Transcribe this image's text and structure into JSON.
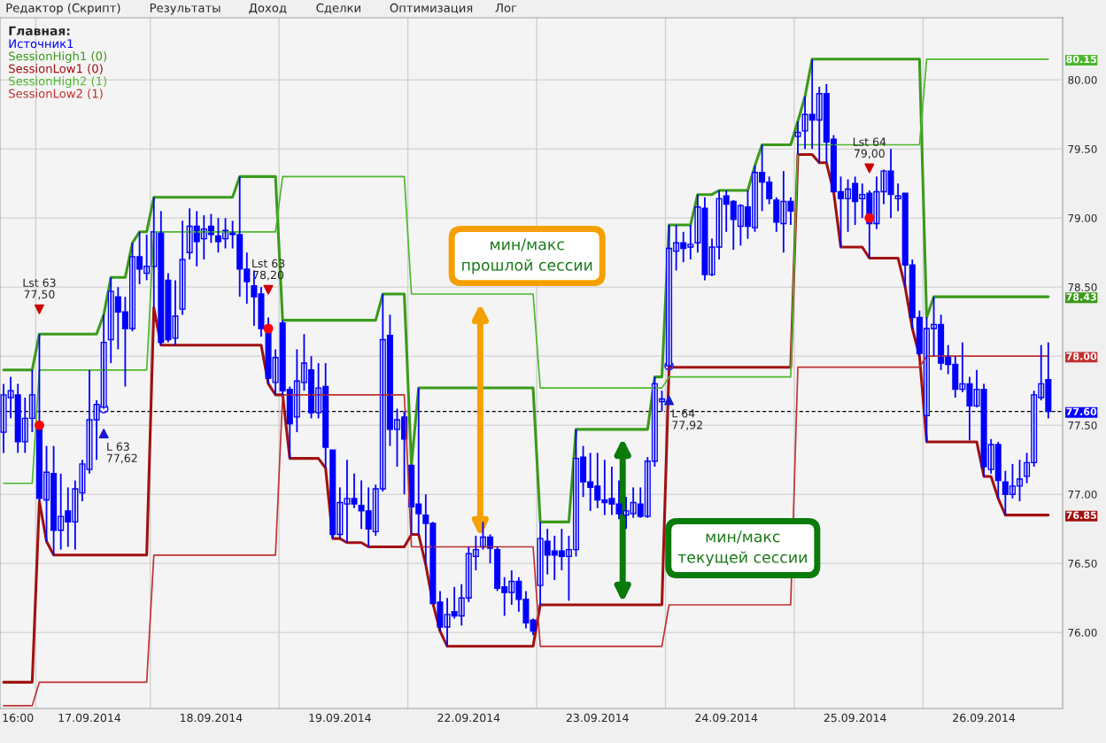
{
  "chart_data": {
    "type": "candlestick",
    "legend_title": "Главная:",
    "legend": "top left",
    "grid": "y",
    "categories": [
      null,
      null,
      "16:00",
      null,
      null,
      null,
      null,
      null,
      null,
      null,
      null,
      null,
      "17.09.2014",
      null,
      null,
      null,
      null,
      null,
      null,
      null,
      null,
      null,
      null,
      null,
      null,
      null,
      null,
      null,
      null,
      "18.09.2014",
      null,
      null,
      null,
      null,
      null,
      null,
      null,
      null,
      null,
      null,
      null,
      null,
      null,
      null,
      null,
      null,
      null,
      "19.09.2014",
      null,
      null,
      null,
      null,
      null,
      null,
      null,
      null,
      null,
      null,
      null,
      null,
      null,
      null,
      null,
      null,
      null,
      "22.09.2014",
      null,
      null,
      null,
      null,
      null,
      null,
      null,
      null,
      null,
      null,
      null,
      null,
      null,
      null,
      null,
      null,
      null,
      "23.09.2014",
      null,
      null,
      null,
      null,
      null,
      null,
      null,
      null,
      null,
      null,
      null,
      null,
      null,
      null,
      null,
      null,
      null,
      "24.09.2014",
      null,
      null,
      null,
      null,
      null,
      null,
      null,
      null,
      null,
      null,
      null,
      null,
      null,
      null,
      null,
      null,
      null,
      "25.09.2014",
      null,
      null,
      null,
      null,
      null,
      null,
      null,
      null,
      null,
      null,
      null,
      null,
      null,
      null,
      null,
      null,
      null,
      "26.09.2014",
      null,
      null,
      null,
      null,
      null,
      null,
      null,
      null,
      null
    ],
    "ylim": [
      75.45,
      80.45
    ],
    "yticks": [
      {
        "value": 76,
        "label": "76.00"
      },
      {
        "value": 76.5,
        "label": "76.50"
      },
      {
        "value": 77,
        "label": "77.00"
      },
      {
        "value": 77.5,
        "label": "77.50"
      },
      {
        "value": 78,
        "label": null
      },
      {
        "value": 78.5,
        "label": "78.50"
      },
      {
        "value": 79,
        "label": "79.00"
      },
      {
        "value": 79.5,
        "label": "79.50"
      },
      {
        "value": 80,
        "label": "80.00"
      }
    ],
    "ref_lines": [
      {
        "axis": "y",
        "value": 77.6,
        "color": "#000000",
        "line_style": "dashed"
      }
    ],
    "series": [
      {
        "name": "Источник1",
        "color": "#0000ff",
        "ohlc": [
          [
            77.45,
            77.8,
            77.3,
            77.72
          ],
          [
            77.7,
            77.85,
            77.55,
            77.75
          ],
          [
            77.72,
            77.8,
            77.3,
            77.38
          ],
          [
            77.38,
            77.7,
            77.3,
            77.55
          ],
          [
            77.55,
            77.9,
            77.45,
            77.72
          ],
          [
            77.48,
            78.16,
            76.95,
            76.97
          ],
          [
            76.96,
            77.35,
            76.66,
            77.16
          ],
          [
            77.15,
            77.35,
            76.56,
            76.74
          ],
          [
            76.74,
            77.15,
            76.6,
            76.84
          ],
          [
            76.88,
            77.05,
            76.62,
            76.8
          ],
          [
            76.8,
            77.1,
            76.6,
            77.04
          ],
          [
            77.01,
            77.25,
            76.95,
            77.22
          ],
          [
            77.18,
            77.9,
            77.15,
            77.54
          ],
          [
            77.54,
            77.68,
            77.25,
            77.65
          ],
          [
            77.63,
            78.3,
            77.62,
            78.1
          ],
          [
            78.12,
            78.57,
            77.95,
            78.47
          ],
          [
            78.43,
            78.5,
            78.05,
            78.32
          ],
          [
            78.32,
            78.43,
            77.78,
            78.2
          ],
          [
            78.2,
            78.82,
            78.18,
            78.72
          ],
          [
            78.72,
            78.9,
            78.52,
            78.63
          ],
          [
            78.6,
            78.88,
            78.55,
            78.65
          ],
          [
            78.65,
            79.15,
            78.35,
            78.9
          ],
          [
            78.9,
            79.05,
            78.08,
            78.1
          ],
          [
            78.55,
            78.6,
            78.1,
            78.12
          ],
          [
            78.13,
            78.55,
            78.08,
            78.29
          ],
          [
            78.34,
            78.98,
            78.3,
            78.7
          ],
          [
            78.75,
            79.07,
            78.7,
            78.94
          ],
          [
            78.94,
            79.05,
            78.65,
            78.83
          ],
          [
            78.85,
            79.02,
            78.7,
            78.92
          ],
          [
            78.94,
            79.03,
            78.82,
            78.88
          ],
          [
            78.87,
            79.0,
            78.75,
            78.83
          ],
          [
            78.85,
            79.0,
            78.78,
            78.91
          ],
          [
            78.9,
            78.98,
            78.78,
            78.88
          ],
          [
            78.88,
            79.3,
            78.43,
            78.63
          ],
          [
            78.63,
            78.75,
            78.38,
            78.54
          ],
          [
            78.51,
            78.62,
            78.22,
            78.43
          ],
          [
            78.45,
            78.5,
            78.14,
            78.2
          ],
          [
            78.19,
            78.28,
            77.8,
            77.84
          ],
          [
            77.81,
            78.05,
            77.72,
            77.99
          ],
          [
            78.24,
            78.26,
            77.72,
            77.75
          ],
          [
            77.76,
            77.78,
            77.26,
            77.51
          ],
          [
            77.56,
            78.05,
            77.45,
            77.82
          ],
          [
            77.81,
            78.16,
            77.75,
            77.95
          ],
          [
            77.9,
            78.0,
            77.55,
            77.59
          ],
          [
            77.59,
            77.95,
            77.55,
            77.77
          ],
          [
            77.78,
            77.95,
            77.19,
            77.34
          ],
          [
            77.32,
            77.32,
            76.68,
            76.71
          ],
          [
            76.71,
            77.05,
            76.68,
            76.94
          ],
          [
            76.93,
            77.25,
            76.65,
            76.97
          ],
          [
            76.97,
            77.15,
            76.9,
            76.93
          ],
          [
            76.92,
            77.1,
            76.75,
            76.88
          ],
          [
            76.88,
            77.05,
            76.62,
            76.75
          ],
          [
            76.73,
            77.07,
            76.7,
            77.04
          ],
          [
            77.04,
            78.45,
            77.02,
            78.12
          ],
          [
            78.15,
            78.3,
            77.35,
            77.47
          ],
          [
            77.47,
            77.62,
            77.2,
            77.54
          ],
          [
            77.56,
            77.6,
            77.0,
            77.4
          ],
          [
            77.21,
            77.21,
            76.71,
            76.91
          ],
          [
            76.93,
            77.77,
            76.71,
            76.86
          ],
          [
            76.85,
            77.0,
            76.49,
            76.79
          ],
          [
            76.79,
            76.8,
            76.21,
            76.21
          ],
          [
            76.22,
            76.3,
            76.01,
            76.04
          ],
          [
            76.04,
            76.25,
            75.9,
            76.13
          ],
          [
            76.15,
            76.33,
            76.1,
            76.12
          ],
          [
            76.12,
            76.35,
            76.05,
            76.25
          ],
          [
            76.25,
            76.62,
            76.22,
            76.57
          ],
          [
            76.55,
            76.7,
            76.45,
            76.6
          ],
          [
            76.62,
            76.8,
            76.6,
            76.69
          ],
          [
            76.69,
            76.71,
            76.5,
            76.61
          ],
          [
            76.6,
            76.62,
            76.3,
            76.32
          ],
          [
            76.33,
            76.4,
            76.12,
            76.29
          ],
          [
            76.29,
            76.45,
            76.2,
            76.37
          ],
          [
            76.37,
            76.4,
            76.15,
            76.24
          ],
          [
            76.24,
            76.3,
            76.03,
            76.07
          ],
          [
            76.09,
            76.1,
            75.98,
            76.01
          ],
          [
            76.34,
            76.8,
            76.2,
            76.68
          ],
          [
            76.66,
            76.75,
            76.42,
            76.56
          ],
          [
            76.59,
            76.7,
            76.38,
            76.56
          ],
          [
            76.59,
            76.75,
            76.45,
            76.55
          ],
          [
            76.55,
            76.7,
            76.23,
            76.6
          ],
          [
            76.6,
            77.47,
            76.55,
            77.26
          ],
          [
            77.27,
            77.35,
            76.98,
            77.09
          ],
          [
            77.09,
            77.3,
            76.88,
            77.05
          ],
          [
            77.06,
            77.3,
            76.9,
            76.96
          ],
          [
            76.96,
            77.25,
            76.85,
            76.94
          ],
          [
            76.97,
            77.2,
            76.85,
            76.93
          ],
          [
            76.93,
            77.1,
            76.82,
            76.86
          ],
          [
            76.85,
            76.98,
            76.75,
            76.88
          ],
          [
            76.86,
            77.05,
            76.83,
            76.94
          ],
          [
            76.93,
            77.05,
            76.83,
            76.84
          ],
          [
            76.84,
            77.27,
            76.83,
            77.24
          ],
          [
            77.24,
            77.85,
            77.2,
            77.8
          ],
          [
            77.67,
            77.75,
            77.6,
            77.69
          ],
          [
            77.93,
            78.95,
            77.92,
            78.78
          ],
          [
            78.76,
            78.95,
            78.62,
            78.82
          ],
          [
            78.82,
            78.9,
            78.68,
            78.78
          ],
          [
            78.79,
            78.95,
            78.7,
            78.81
          ],
          [
            78.82,
            79.17,
            78.75,
            79.08
          ],
          [
            79.07,
            79.15,
            78.55,
            78.59
          ],
          [
            78.59,
            78.85,
            78.58,
            78.79
          ],
          [
            78.79,
            79.2,
            78.7,
            79.14
          ],
          [
            79.16,
            79.2,
            78.9,
            79.1
          ],
          [
            79.12,
            79.13,
            78.77,
            78.99
          ],
          [
            78.94,
            79.1,
            78.8,
            79.09
          ],
          [
            79.08,
            79.2,
            78.85,
            78.94
          ],
          [
            78.93,
            79.38,
            78.9,
            79.33
          ],
          [
            79.33,
            79.53,
            79.05,
            79.26
          ],
          [
            79.26,
            79.3,
            79.1,
            79.14
          ],
          [
            79.13,
            79.15,
            78.9,
            78.97
          ],
          [
            78.96,
            79.34,
            78.75,
            79.12
          ],
          [
            79.12,
            79.15,
            78.95,
            79.05
          ],
          [
            79.59,
            79.7,
            79.46,
            79.62
          ],
          [
            79.63,
            79.88,
            79.5,
            79.75
          ],
          [
            79.75,
            80.15,
            79.5,
            79.71
          ],
          [
            79.71,
            79.95,
            79.4,
            79.9
          ],
          [
            79.9,
            79.97,
            79.4,
            79.55
          ],
          [
            79.57,
            79.6,
            79.19,
            79.19
          ],
          [
            79.19,
            79.3,
            78.79,
            79.14
          ],
          [
            79.14,
            79.28,
            78.9,
            79.21
          ],
          [
            79.25,
            79.3,
            78.95,
            79.12
          ],
          [
            79.14,
            79.25,
            79.0,
            79.17
          ],
          [
            79.18,
            79.2,
            78.71,
            78.96
          ],
          [
            78.96,
            79.3,
            78.92,
            79.19
          ],
          [
            79.19,
            79.35,
            79.1,
            79.34
          ],
          [
            79.34,
            79.5,
            79.0,
            79.17
          ],
          [
            79.14,
            79.25,
            79.05,
            79.16
          ],
          [
            79.18,
            79.18,
            78.5,
            78.66
          ],
          [
            78.66,
            78.7,
            78.2,
            78.28
          ],
          [
            78.28,
            78.33,
            78.0,
            78.02
          ],
          [
            77.57,
            78.28,
            77.38,
            78.2
          ],
          [
            78.2,
            78.43,
            78.0,
            78.23
          ],
          [
            78.23,
            78.3,
            77.9,
            77.95
          ],
          [
            78.0,
            78.08,
            77.87,
            77.94
          ],
          [
            77.94,
            78.0,
            77.7,
            77.76
          ],
          [
            77.76,
            78.1,
            77.74,
            77.8
          ],
          [
            77.8,
            77.85,
            77.39,
            77.64
          ],
          [
            77.64,
            77.9,
            77.63,
            77.76
          ],
          [
            77.76,
            77.8,
            77.13,
            77.2
          ],
          [
            77.18,
            77.4,
            77.15,
            77.36
          ],
          [
            77.36,
            77.38,
            76.97,
            77.1
          ],
          [
            77.09,
            77.17,
            76.85,
            77.0
          ],
          [
            77.0,
            77.22,
            76.97,
            77.06
          ],
          [
            77.06,
            77.25,
            76.95,
            77.11
          ],
          [
            77.13,
            77.3,
            77.08,
            77.23
          ],
          [
            77.23,
            77.75,
            77.2,
            77.72
          ],
          [
            77.7,
            78.08,
            77.68,
            77.8
          ],
          [
            77.83,
            78.1,
            77.55,
            77.6
          ]
        ]
      },
      {
        "type": "line",
        "name": "SessionHigh1 (0)",
        "color": "#3a9a1a",
        "values": [
          77.9,
          77.9,
          77.9,
          77.9,
          77.9,
          78.16,
          78.16,
          78.16,
          78.16,
          78.16,
          78.16,
          78.16,
          78.16,
          78.16,
          78.3,
          78.57,
          78.57,
          78.57,
          78.82,
          78.9,
          78.9,
          79.15,
          79.15,
          79.15,
          79.15,
          79.15,
          79.15,
          79.15,
          79.15,
          79.15,
          79.15,
          79.15,
          79.15,
          79.3,
          79.3,
          79.3,
          79.3,
          79.3,
          79.3,
          78.26,
          78.26,
          78.26,
          78.26,
          78.26,
          78.26,
          78.26,
          78.26,
          78.26,
          78.26,
          78.26,
          78.26,
          78.26,
          78.26,
          78.45,
          78.45,
          78.45,
          78.45,
          77.21,
          77.77,
          77.77,
          77.77,
          77.77,
          77.77,
          77.77,
          77.77,
          77.77,
          77.77,
          77.77,
          77.77,
          77.77,
          77.77,
          77.77,
          77.77,
          77.77,
          77.77,
          76.8,
          76.8,
          76.8,
          76.8,
          76.8,
          77.47,
          77.47,
          77.47,
          77.47,
          77.47,
          77.47,
          77.47,
          77.47,
          77.47,
          77.47,
          77.47,
          77.85,
          77.85,
          78.95,
          78.95,
          78.95,
          78.95,
          79.17,
          79.17,
          79.17,
          79.2,
          79.2,
          79.2,
          79.2,
          79.2,
          79.38,
          79.53,
          79.53,
          79.53,
          79.53,
          79.53,
          79.7,
          79.88,
          80.15,
          80.15,
          80.15,
          80.15,
          80.15,
          80.15,
          80.15,
          80.15,
          80.15,
          80.15,
          80.15,
          80.15,
          80.15,
          80.15,
          80.15,
          80.15,
          78.28,
          78.43,
          78.43,
          78.43,
          78.43,
          78.43,
          78.43,
          78.43,
          78.43,
          78.43,
          78.43,
          78.43,
          78.43,
          78.43,
          78.43,
          78.43,
          78.43,
          78.43
        ]
      },
      {
        "type": "line",
        "name": "SessionLow1 (0)",
        "color": "#a01010",
        "values": [
          75.64,
          75.64,
          75.64,
          75.64,
          75.64,
          76.95,
          76.66,
          76.56,
          76.56,
          76.56,
          76.56,
          76.56,
          76.56,
          76.56,
          76.56,
          76.56,
          76.56,
          76.56,
          76.56,
          76.56,
          76.56,
          78.35,
          78.08,
          78.08,
          78.08,
          78.08,
          78.08,
          78.08,
          78.08,
          78.08,
          78.08,
          78.08,
          78.08,
          78.08,
          78.08,
          78.08,
          78.08,
          77.8,
          77.72,
          77.72,
          77.26,
          77.26,
          77.26,
          77.26,
          77.26,
          77.19,
          76.68,
          76.68,
          76.65,
          76.65,
          76.65,
          76.62,
          76.62,
          76.62,
          76.62,
          76.62,
          76.62,
          76.71,
          76.71,
          76.49,
          76.21,
          76.01,
          75.9,
          75.9,
          75.9,
          75.9,
          75.9,
          75.9,
          75.9,
          75.9,
          75.9,
          75.9,
          75.9,
          75.9,
          75.9,
          76.2,
          76.2,
          76.2,
          76.2,
          76.2,
          76.2,
          76.2,
          76.2,
          76.2,
          76.2,
          76.2,
          76.2,
          76.2,
          76.2,
          76.2,
          76.2,
          76.2,
          76.2,
          77.92,
          77.92,
          77.92,
          77.92,
          77.92,
          77.92,
          77.92,
          77.92,
          77.92,
          77.92,
          77.92,
          77.92,
          77.92,
          77.92,
          77.92,
          77.92,
          77.92,
          77.92,
          79.46,
          79.46,
          79.46,
          79.4,
          79.4,
          79.19,
          78.79,
          78.79,
          78.79,
          78.79,
          78.71,
          78.71,
          78.71,
          78.71,
          78.71,
          78.5,
          78.2,
          78.0,
          77.38,
          77.38,
          77.38,
          77.38,
          77.38,
          77.38,
          77.38,
          77.38,
          77.13,
          77.13,
          76.97,
          76.85,
          76.85,
          76.85,
          76.85,
          76.85,
          76.85,
          76.85
        ]
      },
      {
        "type": "line",
        "name": "SessionHigh2 (1)",
        "color": "#4cb82c",
        "values": [
          77.08,
          77.08,
          77.08,
          77.08,
          77.08,
          77.9,
          77.9,
          77.9,
          77.9,
          77.9,
          77.9,
          77.9,
          77.9,
          77.9,
          77.9,
          77.9,
          77.9,
          77.9,
          77.9,
          77.9,
          77.9,
          78.9,
          78.9,
          78.9,
          78.9,
          78.9,
          78.9,
          78.9,
          78.9,
          78.9,
          78.9,
          78.9,
          78.9,
          78.9,
          78.9,
          78.9,
          78.9,
          78.9,
          78.9,
          79.3,
          79.3,
          79.3,
          79.3,
          79.3,
          79.3,
          79.3,
          79.3,
          79.3,
          79.3,
          79.3,
          79.3,
          79.3,
          79.3,
          79.3,
          79.3,
          79.3,
          79.3,
          78.45,
          78.45,
          78.45,
          78.45,
          78.45,
          78.45,
          78.45,
          78.45,
          78.45,
          78.45,
          78.45,
          78.45,
          78.45,
          78.45,
          78.45,
          78.45,
          78.45,
          78.45,
          77.77,
          77.77,
          77.77,
          77.77,
          77.77,
          77.77,
          77.77,
          77.77,
          77.77,
          77.77,
          77.77,
          77.77,
          77.77,
          77.77,
          77.77,
          77.77,
          77.77,
          77.77,
          77.85,
          77.85,
          77.85,
          77.85,
          77.85,
          77.85,
          77.85,
          77.85,
          77.85,
          77.85,
          77.85,
          77.85,
          77.85,
          77.85,
          77.85,
          77.85,
          77.85,
          77.85,
          79.53,
          79.53,
          79.53,
          79.53,
          79.53,
          79.53,
          79.53,
          79.53,
          79.53,
          79.53,
          79.53,
          79.53,
          79.53,
          79.53,
          79.53,
          79.53,
          79.53,
          79.53,
          80.15,
          80.15,
          80.15,
          80.15,
          80.15,
          80.15,
          80.15,
          80.15,
          80.15,
          80.15,
          80.15,
          80.15,
          80.15,
          80.15,
          80.15,
          80.15,
          80.15,
          80.15
        ]
      },
      {
        "type": "line",
        "name": "SessionLow2 (1)",
        "color": "#c03030",
        "values": [
          75.47,
          75.47,
          75.47,
          75.47,
          75.47,
          75.64,
          75.64,
          75.64,
          75.64,
          75.64,
          75.64,
          75.64,
          75.64,
          75.64,
          75.64,
          75.64,
          75.64,
          75.64,
          75.64,
          75.64,
          75.64,
          76.56,
          76.56,
          76.56,
          76.56,
          76.56,
          76.56,
          76.56,
          76.56,
          76.56,
          76.56,
          76.56,
          76.56,
          76.56,
          76.56,
          76.56,
          76.56,
          76.56,
          76.56,
          77.72,
          77.72,
          77.72,
          77.72,
          77.72,
          77.72,
          77.72,
          77.72,
          77.72,
          77.72,
          77.72,
          77.72,
          77.72,
          77.72,
          77.72,
          77.72,
          77.72,
          77.72,
          76.62,
          76.62,
          76.62,
          76.62,
          76.62,
          76.62,
          76.62,
          76.62,
          76.62,
          76.62,
          76.62,
          76.62,
          76.62,
          76.62,
          76.62,
          76.62,
          76.62,
          76.62,
          75.9,
          75.9,
          75.9,
          75.9,
          75.9,
          75.9,
          75.9,
          75.9,
          75.9,
          75.9,
          75.9,
          75.9,
          75.9,
          75.9,
          75.9,
          75.9,
          75.9,
          75.9,
          76.2,
          76.2,
          76.2,
          76.2,
          76.2,
          76.2,
          76.2,
          76.2,
          76.2,
          76.2,
          76.2,
          76.2,
          76.2,
          76.2,
          76.2,
          76.2,
          76.2,
          76.2,
          77.92,
          77.92,
          77.92,
          77.92,
          77.92,
          77.92,
          77.92,
          77.92,
          77.92,
          77.92,
          77.92,
          77.92,
          77.92,
          77.92,
          77.92,
          77.92,
          77.92,
          77.92,
          78.0,
          78.0,
          78.0,
          78.0,
          78.0,
          78.0,
          78.0,
          78.0,
          78.0,
          78.0,
          78.0,
          78.0,
          78.0,
          78.0,
          78.0,
          78.0,
          78.0,
          78.0
        ]
      },
      {
        "type": "scatter",
        "color": "#cc0000",
        "marker": "triangle",
        "values": [
          null,
          null,
          null,
          null,
          null,
          78.34,
          null,
          null,
          null,
          null,
          null,
          null,
          null,
          null,
          null,
          null,
          null,
          null,
          null,
          null,
          null,
          null,
          null,
          null,
          null,
          null,
          null,
          null,
          null,
          null,
          null,
          null,
          null,
          null,
          null,
          null,
          null,
          78.48,
          null,
          null,
          null,
          null,
          null,
          null,
          null,
          null,
          null,
          null,
          null,
          null,
          null,
          null,
          null,
          null,
          null,
          null,
          null,
          null,
          null,
          null,
          null,
          null,
          null,
          null,
          null,
          null,
          null,
          null,
          null,
          null,
          null,
          null,
          null,
          null,
          null,
          null,
          null,
          null,
          null,
          null,
          null,
          null,
          null,
          null,
          null,
          null,
          null,
          null,
          null,
          null,
          null,
          null,
          null,
          null,
          null,
          null,
          null,
          null,
          null,
          null,
          null,
          null,
          null,
          null,
          null,
          null,
          null,
          null,
          null,
          null,
          null,
          null,
          null,
          null,
          null,
          null,
          null,
          null,
          null,
          null,
          null,
          79.36,
          null,
          null,
          null,
          null,
          null,
          null,
          null,
          null,
          null,
          null,
          null,
          null,
          null,
          null,
          null,
          null,
          null,
          null,
          null,
          null,
          null,
          null,
          null,
          null,
          null
        ]
      },
      {
        "type": "scatter",
        "color": "#1a1acc",
        "marker": "triangle",
        "values": [
          null,
          null,
          null,
          null,
          null,
          null,
          null,
          null,
          null,
          null,
          null,
          null,
          null,
          null,
          77.44,
          null,
          null,
          null,
          null,
          null,
          null,
          null,
          null,
          null,
          null,
          null,
          null,
          null,
          null,
          null,
          null,
          null,
          null,
          null,
          null,
          null,
          null,
          null,
          null,
          null,
          null,
          null,
          null,
          null,
          null,
          null,
          null,
          null,
          null,
          null,
          null,
          null,
          null,
          null,
          null,
          null,
          null,
          null,
          null,
          null,
          null,
          null,
          null,
          null,
          null,
          null,
          null,
          null,
          null,
          null,
          null,
          null,
          null,
          null,
          null,
          null,
          null,
          null,
          null,
          null,
          null,
          null,
          null,
          null,
          null,
          null,
          null,
          null,
          null,
          null,
          null,
          null,
          null,
          77.68,
          null,
          null,
          null,
          null,
          null,
          null,
          null,
          null,
          null,
          null,
          null,
          null,
          null,
          null,
          null,
          null,
          null,
          null,
          null,
          null,
          null,
          null,
          null,
          null,
          null,
          null,
          null,
          null,
          null,
          null,
          null,
          null,
          null,
          null,
          null,
          null,
          null,
          null,
          null,
          null,
          null,
          null,
          null,
          null,
          null,
          null,
          null,
          null,
          null,
          null,
          null,
          null,
          null
        ]
      },
      {
        "type": "scatter",
        "color": "#ff0000",
        "marker": "circle",
        "values": [
          null,
          null,
          null,
          null,
          null,
          77.5,
          null,
          null,
          null,
          null,
          null,
          null,
          null,
          null,
          null,
          null,
          null,
          null,
          null,
          null,
          null,
          null,
          null,
          null,
          null,
          null,
          null,
          null,
          null,
          null,
          null,
          null,
          null,
          null,
          null,
          null,
          null,
          78.2,
          null,
          null,
          null,
          null,
          null,
          null,
          null,
          null,
          null,
          null,
          null,
          null,
          null,
          null,
          null,
          null,
          null,
          null,
          null,
          null,
          null,
          null,
          null,
          null,
          null,
          null,
          null,
          null,
          null,
          null,
          null,
          null,
          null,
          null,
          null,
          null,
          null,
          null,
          null,
          null,
          null,
          null,
          null,
          null,
          null,
          null,
          null,
          null,
          null,
          null,
          null,
          null,
          null,
          null,
          null,
          null,
          null,
          null,
          null,
          null,
          null,
          null,
          null,
          null,
          null,
          null,
          null,
          null,
          null,
          null,
          null,
          null,
          null,
          null,
          null,
          null,
          null,
          null,
          null,
          null,
          null,
          null,
          null,
          79.0,
          null,
          null,
          null,
          null,
          null,
          null,
          null,
          null,
          null,
          null,
          null,
          null,
          null,
          null,
          null,
          null,
          null,
          null,
          null,
          null,
          null,
          null,
          null,
          null,
          null
        ]
      },
      {
        "type": "scatter",
        "color": "#3030ff",
        "marker": "circle",
        "values": [
          null,
          null,
          null,
          null,
          null,
          null,
          null,
          null,
          null,
          null,
          null,
          null,
          null,
          null,
          77.62,
          null,
          null,
          null,
          null,
          null,
          null,
          null,
          null,
          null,
          null,
          null,
          null,
          null,
          null,
          null,
          null,
          null,
          null,
          null,
          null,
          null,
          null,
          null,
          null,
          null,
          null,
          null,
          null,
          null,
          null,
          null,
          null,
          null,
          null,
          null,
          null,
          null,
          null,
          null,
          null,
          null,
          null,
          null,
          null,
          null,
          null,
          null,
          null,
          null,
          null,
          null,
          null,
          null,
          null,
          null,
          null,
          null,
          null,
          null,
          null,
          null,
          null,
          null,
          null,
          null,
          null,
          null,
          null,
          null,
          null,
          null,
          null,
          null,
          null,
          null,
          null,
          null,
          null,
          77.93,
          null,
          null,
          null,
          null,
          null,
          null,
          null,
          null,
          null,
          null,
          null,
          null,
          null,
          null,
          null,
          null,
          null,
          null,
          null,
          null,
          null,
          null,
          null,
          null,
          null,
          null,
          null,
          null,
          null,
          null,
          null,
          null,
          null,
          null,
          null,
          null,
          null,
          null,
          null,
          null,
          null,
          null,
          null,
          null,
          null,
          null,
          null,
          null,
          null,
          null,
          null,
          null,
          null
        ]
      }
    ],
    "annotations": [
      "Редактор (Скрипт)",
      "Результаты",
      "Доход",
      "Сделки",
      "Оптимизация",
      "Лог",
      "мин/макс\nпрошлой сессии",
      "мин/макс\nтекущей сессии",
      "Lst 63\n77,50",
      "Lst 63\n78,20",
      "Lst 64\n79,00",
      "L 63\n77,62",
      "L 64\n77,92",
      "80.15",
      "78.43",
      "78.00",
      "77.60",
      "76.85"
    ]
  }
}
